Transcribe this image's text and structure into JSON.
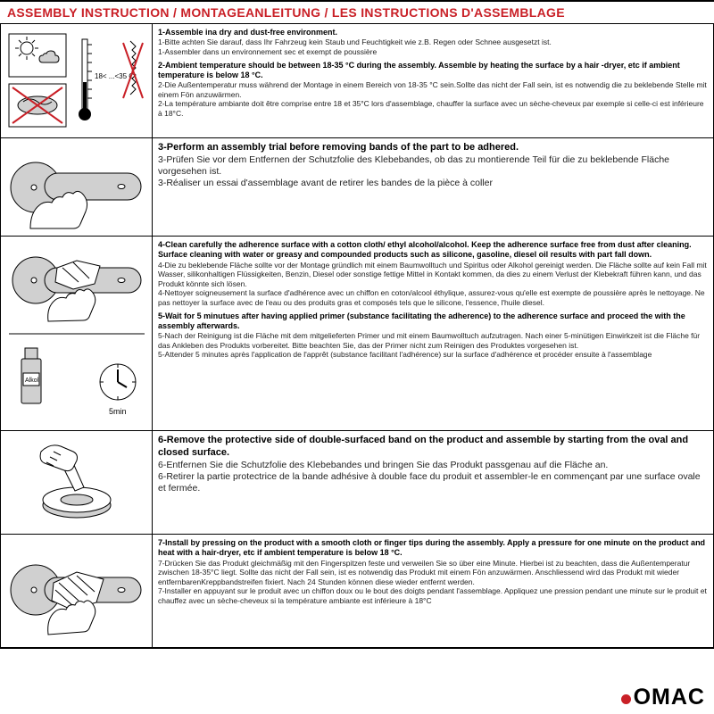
{
  "colors": {
    "accent": "#c92027",
    "text": "#222222",
    "border": "#000000",
    "bg": "#ffffff",
    "gray": "#d0d0d0"
  },
  "header": {
    "title": "ASSEMBLY INSTRUCTION / MONTAGEANLEITUNG / LES INSTRUCTIONS D'ASSEMBLAGE"
  },
  "footer": {
    "logo": "OMAC"
  },
  "temp_label": "18< ...<35 C",
  "primer_label": "Alkol",
  "primer_time": "5min",
  "rows": [
    {
      "items": [
        {
          "cls": "bold",
          "t": "1-Assemble ina dry and dust-free environment."
        },
        {
          "cls": "",
          "t": "1-Bitte achten Sie darauf, dass Ihr Fahrzeug kein Staub und Feuchtigkeit wie z.B. Regen oder Schnee ausgesetzt ist."
        },
        {
          "cls": "",
          "t": "1-Assembler dans un environnement sec et exempt de poussière"
        },
        {
          "cls": "sp",
          "t": ""
        },
        {
          "cls": "bold",
          "t": "2-Ambient temperature should be between 18-35 °C  during the assembly. Assemble by heating the surface by a hair -dryer, etc if ambient temperature is below 18 °C."
        },
        {
          "cls": "",
          "t": "2-Die Außentemperatur muss während der Montage in einem Bereich von 18-35 °C  sein.Sollte das nicht der Fall sein, ist es notwendig die zu beklebende Stelle mit einem Fön anzuwärmen."
        },
        {
          "cls": "",
          "t": "2-La température ambiante doit être comprise entre 18 et 35°C lors d'assemblage, chauffer la surface avec un sèche-cheveux par exemple si celle-ci est inférieure à 18°C."
        }
      ]
    },
    {
      "items": [
        {
          "cls": "lg",
          "t": "3-Perform an assembly trial before removing bands of the part to be adhered."
        },
        {
          "cls": "lg2",
          "t": "3-Prüfen Sie vor dem Entfernen der Schutzfolie des Klebebandes, ob das zu montierende Teil für die zu beklebende Fläche vorgesehen ist."
        },
        {
          "cls": "lg2",
          "t": "3-Réaliser un essai d'assemblage avant de retirer les bandes de la pièce à coller"
        }
      ]
    },
    {
      "items": [
        {
          "cls": "bold",
          "t": "4-Clean carefully the adherence surface with a cotton cloth/ ethyl alcohol/alcohol. Keep the adherence surface free from dust after cleaning. Surface cleaning with water or greasy and compounded products such as silicone, gasoline, diesel oil results with part fall down."
        },
        {
          "cls": "",
          "t": "4-Die zu beklebende Fläche sollte vor der Montage gründlich mit einem Baumwolltuch und Spiritus oder Alkohol gereinigt werden. Die Fläche sollte auf kein Fall mit Wasser, silikonhaltigen Flüssigkeiten, Benzin, Diesel oder sonstige fettige Mittel in Kontakt kommen, da dies zu einem Verlust der Klebekraft führen kann, und das Produkt könnte sich lösen."
        },
        {
          "cls": "",
          "t": "4-Nettoyer soigneusement la surface d'adhérence avec un chiffon en coton/alcool éthylique, assurez-vous qu'elle est exempte de poussière après le nettoyage. Ne pas nettoyer la surface avec de l'eau ou des produits gras et composés tels que le silicone, l'essence, l'huile diesel."
        },
        {
          "cls": "sp",
          "t": ""
        },
        {
          "cls": "bold",
          "t": "5-Wait for 5 minutues after having applied primer (substance facilitating the adherence) to the adherence surface and proceed the with the assembly afterwards."
        },
        {
          "cls": "",
          "t": "5-Nach der Reinigung ist die Fläche mit dem mitgelieferten Primer und mit einem Baumwolltuch aufzutragen. Nach einer 5-minütigen Einwirkzeit ist die Fläche für das Ankleben des Produkts vorbereitet. Bitte beachten Sie, das der Primer nicht zum Reinigen des Produktes vorgesehen ist."
        },
        {
          "cls": "",
          "t": "5-Attender 5 minutes après l'application de l'apprêt (substance facilitant l'adhérence) sur la surface d'adhérence et procéder ensuite à l'assemblage"
        }
      ]
    },
    {
      "items": [
        {
          "cls": "lg",
          "t": "6-Remove the protective side of double-surfaced band on the product and assemble by starting from the oval and closed surface."
        },
        {
          "cls": "lg2",
          "t": "6-Entfernen Sie die Schutzfolie des Klebebandes und bringen Sie das Produkt passgenau auf die Fläche an."
        },
        {
          "cls": "lg2",
          "t": "6-Retirer la partie protectrice de la bande adhésive à double face du produit et assembler-le en commençant par une surface ovale et fermée."
        }
      ]
    },
    {
      "items": [
        {
          "cls": "bold",
          "t": "7-Install by pressing on the product with a smooth cloth or finger tips during the assembly. Apply a pressure for one minute on the product and heat with a hair-dryer, etc if ambient temperature is below 18 °C."
        },
        {
          "cls": "",
          "t": "7-Drücken Sie das Produkt gleichmäßig mit den Fingerspitzen feste und verweilen Sie so über eine Minute. Hierbei ist zu beachten, dass die Außentemperatur zwischen 18-35°C liegt. Sollte das nicht der Fall sein, ist es notwendig das Produkt mit einem Fön anzuwärmen. Anschliessend wird das Produkt mit wieder entfernbarenKreppbandstreifen fixiert. Nach 24 Stunden können diese wieder entfernt werden."
        },
        {
          "cls": "",
          "t": "7-Installer en appuyant sur le produit avec un chiffon doux ou le bout des doigts pendant l'assemblage. Appliquez une pression pendant une minute sur le produit et chauffez avec un sèche-cheveux si la température ambiante est inférieure à 18°C"
        }
      ]
    }
  ]
}
